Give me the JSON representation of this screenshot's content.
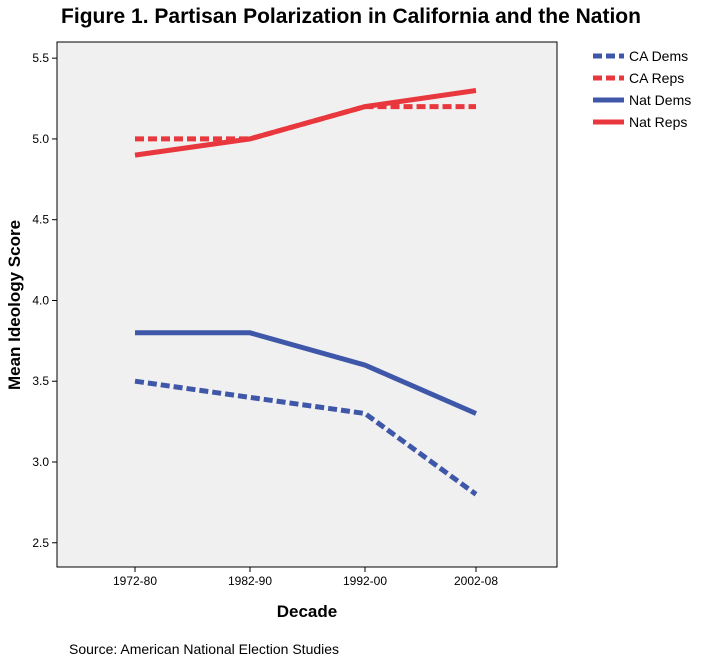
{
  "chart_data": {
    "type": "line",
    "title": "Figure 1. Partisan Polarization in California and the Nation",
    "xlabel": "Decade",
    "ylabel": "Mean Ideology Score",
    "categories": [
      "1972-80",
      "1982-90",
      "1992-00",
      "2002-08"
    ],
    "ylim": [
      2.35,
      5.6
    ],
    "yticks": [
      "2.5",
      "3.0",
      "3.5",
      "4.0",
      "4.5",
      "5.0",
      "5.5"
    ],
    "grid": false,
    "legend_position": "top-right",
    "series": [
      {
        "name": "CA Dems",
        "values": [
          3.5,
          3.4,
          3.3,
          2.8
        ],
        "color": "#3F57A8",
        "style": "dashed"
      },
      {
        "name": "CA Reps",
        "values": [
          5.0,
          5.0,
          5.2,
          5.2
        ],
        "color": "#E8383D",
        "style": "dashed"
      },
      {
        "name": "Nat Dems",
        "values": [
          3.8,
          3.8,
          3.6,
          3.3
        ],
        "color": "#3F57A8",
        "style": "solid"
      },
      {
        "name": "Nat Reps",
        "values": [
          4.9,
          5.0,
          5.2,
          5.3
        ],
        "color": "#E8383D",
        "style": "solid"
      }
    ],
    "plot_background": "#F0F0F0",
    "source_note": "Source: American National Election Studies"
  }
}
